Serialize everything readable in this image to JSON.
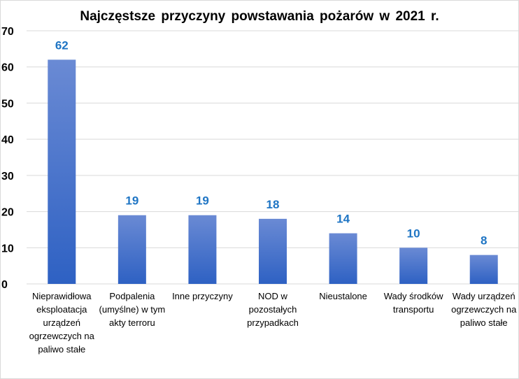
{
  "chart_data": {
    "type": "bar",
    "title": "Najczęstsze przyczyny powstawania pożarów w 2021 r.",
    "categories": [
      "Nieprawidłowa eksploatacja urządzeń ogrzewczych na paliwo stałe",
      "Podpalenia (umyślne) w tym akty terroru",
      "Inne przyczyny",
      "NOD w pozostałych przypadkach",
      "Nieustalone",
      "Wady środków transportu",
      "Wady urządzeń ogrzewczych na paliwo stałe"
    ],
    "values": [
      62,
      19,
      19,
      18,
      14,
      10,
      8
    ],
    "ylim": [
      0,
      70
    ],
    "yticks": [
      0,
      10,
      20,
      30,
      40,
      50,
      60,
      70
    ],
    "grid": true,
    "xlabel": "",
    "ylabel": "",
    "colors": {
      "bar_top": "#6a8ad4",
      "bar_bottom": "#2e61c3",
      "data_label": "#1f75c4",
      "grid": "#d9d9d9"
    }
  }
}
